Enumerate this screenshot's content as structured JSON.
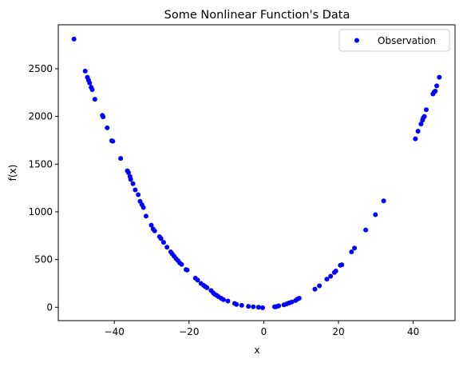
{
  "chart_data": {
    "type": "scatter",
    "title": "Some Nonlinear Function's Data",
    "xlabel": "x",
    "ylabel": "f(x)",
    "xlim": [
      -55.0,
      51.2
    ],
    "ylim": [
      -140,
      2960
    ],
    "xticks": [
      -40,
      -20,
      0,
      20,
      40
    ],
    "yticks": [
      0,
      500,
      1000,
      1500,
      2000,
      2500
    ],
    "grid": false,
    "legend_position": "top-right",
    "marker_color": "#0000ff",
    "series": [
      {
        "name": "Observation",
        "points": [
          [
            -50.8,
            2810
          ],
          [
            -47.8,
            2475
          ],
          [
            -47.2,
            2410
          ],
          [
            -46.9,
            2380
          ],
          [
            -46.6,
            2350
          ],
          [
            -46.2,
            2305
          ],
          [
            -45.9,
            2280
          ],
          [
            -45.2,
            2180
          ],
          [
            -43.2,
            2010
          ],
          [
            -43.0,
            1995
          ],
          [
            -41.9,
            1880
          ],
          [
            -40.7,
            1745
          ],
          [
            -40.4,
            1740
          ],
          [
            -38.3,
            1560
          ],
          [
            -36.5,
            1430
          ],
          [
            -36.2,
            1410
          ],
          [
            -35.8,
            1370
          ],
          [
            -35.6,
            1340
          ],
          [
            -35.0,
            1295
          ],
          [
            -34.4,
            1230
          ],
          [
            -33.6,
            1180
          ],
          [
            -33.1,
            1110
          ],
          [
            -32.6,
            1075
          ],
          [
            -32.2,
            1045
          ],
          [
            -31.5,
            955
          ],
          [
            -30.1,
            860
          ],
          [
            -29.6,
            820
          ],
          [
            -29.2,
            800
          ],
          [
            -27.9,
            740
          ],
          [
            -27.5,
            720
          ],
          [
            -26.8,
            680
          ],
          [
            -25.9,
            630
          ],
          [
            -24.9,
            580
          ],
          [
            -24.5,
            560
          ],
          [
            -24.0,
            535
          ],
          [
            -23.5,
            510
          ],
          [
            -23.0,
            490
          ],
          [
            -22.5,
            465
          ],
          [
            -22.0,
            450
          ],
          [
            -20.8,
            395
          ],
          [
            -20.5,
            390
          ],
          [
            -18.3,
            305
          ],
          [
            -17.7,
            285
          ],
          [
            -16.8,
            250
          ],
          [
            -16.1,
            230
          ],
          [
            -15.6,
            215
          ],
          [
            -15.2,
            205
          ],
          [
            -14.1,
            175
          ],
          [
            -13.5,
            150
          ],
          [
            -13.1,
            135
          ],
          [
            -12.6,
            125
          ],
          [
            -12.1,
            110
          ],
          [
            -11.4,
            95
          ],
          [
            -10.8,
            80
          ],
          [
            -9.6,
            65
          ],
          [
            -7.8,
            40
          ],
          [
            -7.3,
            30
          ],
          [
            -5.9,
            20
          ],
          [
            -4.1,
            10
          ],
          [
            -2.8,
            5
          ],
          [
            -1.4,
            0
          ],
          [
            -0.3,
            -5
          ],
          [
            2.9,
            5
          ],
          [
            3.2,
            5
          ],
          [
            3.6,
            10
          ],
          [
            4.0,
            15
          ],
          [
            5.4,
            25
          ],
          [
            6.1,
            35
          ],
          [
            6.8,
            45
          ],
          [
            7.5,
            55
          ],
          [
            8.5,
            70
          ],
          [
            9.0,
            85
          ],
          [
            9.5,
            95
          ],
          [
            13.7,
            190
          ],
          [
            14.9,
            225
          ],
          [
            16.9,
            295
          ],
          [
            17.9,
            325
          ],
          [
            18.9,
            365
          ],
          [
            19.3,
            380
          ],
          [
            20.5,
            440
          ],
          [
            20.9,
            445
          ],
          [
            23.5,
            580
          ],
          [
            24.3,
            620
          ],
          [
            27.3,
            810
          ],
          [
            29.9,
            970
          ],
          [
            32.1,
            1115
          ],
          [
            40.6,
            1765
          ],
          [
            41.3,
            1845
          ],
          [
            42.1,
            1920
          ],
          [
            42.5,
            1960
          ],
          [
            42.7,
            1985
          ],
          [
            43.0,
            2000
          ],
          [
            43.5,
            2070
          ],
          [
            45.3,
            2235
          ],
          [
            45.6,
            2255
          ],
          [
            45.9,
            2265
          ],
          [
            46.3,
            2320
          ],
          [
            47.0,
            2410
          ]
        ]
      }
    ]
  }
}
